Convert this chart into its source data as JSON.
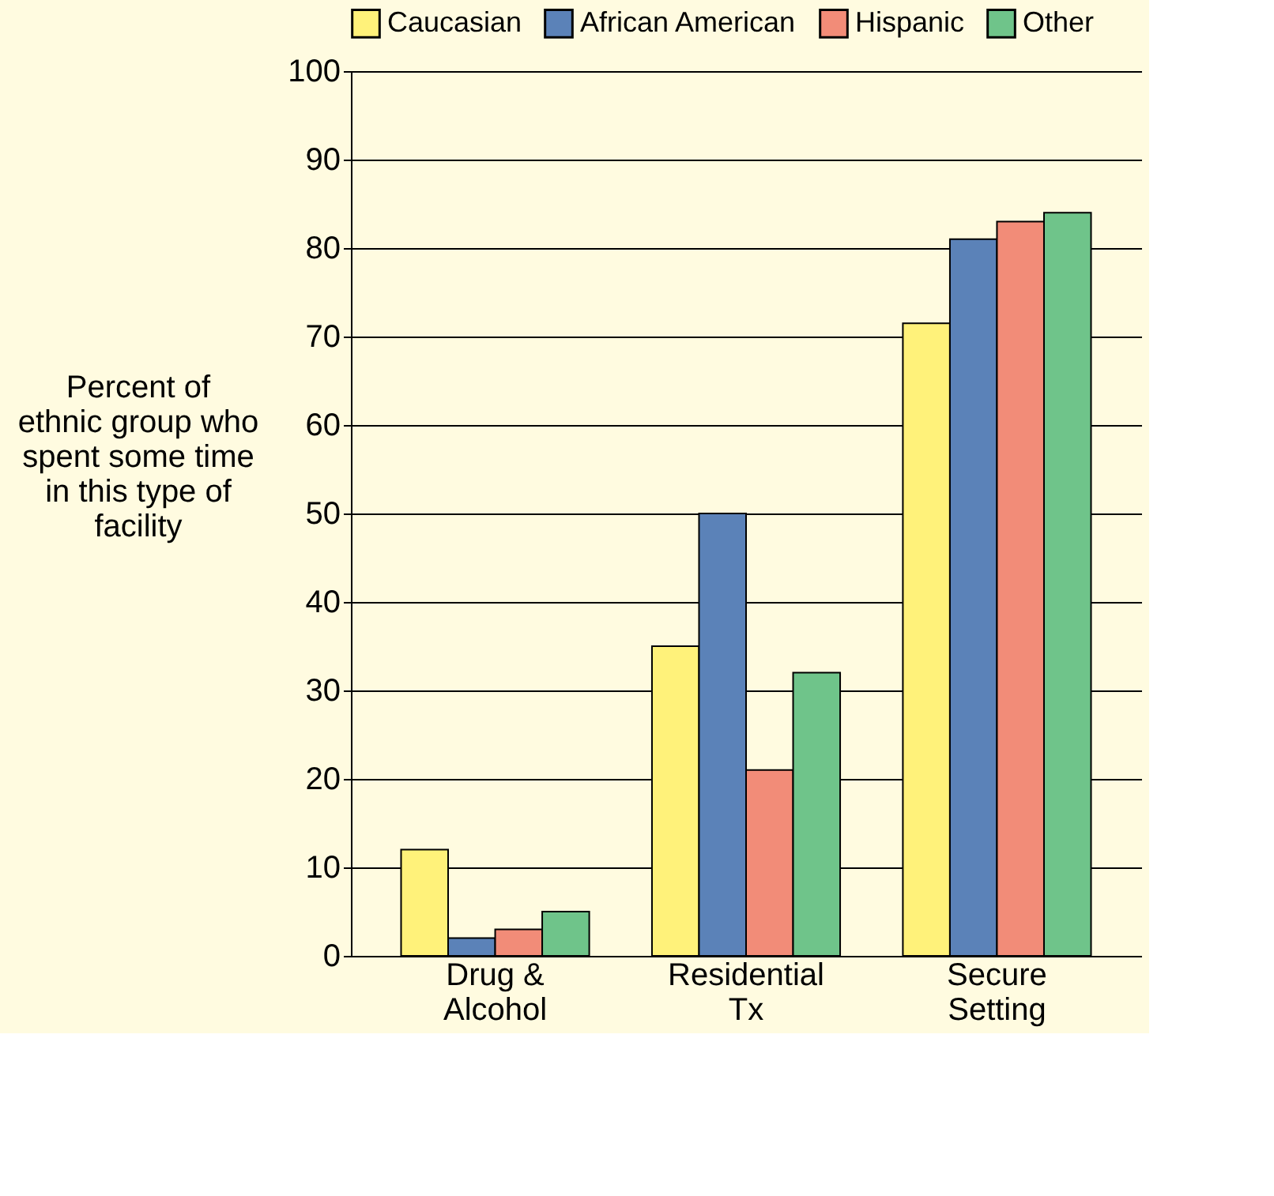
{
  "chart_data": {
    "type": "bar",
    "ylabel": "Percent of ethnic group who spent some time in this type of facility",
    "categories": [
      "Drug & Alcohol",
      "Residential Tx",
      "Secure Setting"
    ],
    "series": [
      {
        "name": "Caucasian",
        "color": "#fff27a",
        "values": [
          12,
          35,
          71.5
        ]
      },
      {
        "name": "African American",
        "color": "#5b82b8",
        "values": [
          2,
          50,
          81
        ]
      },
      {
        "name": "Hispanic",
        "color": "#f28c78",
        "values": [
          3,
          21,
          83
        ]
      },
      {
        "name": "Other",
        "color": "#6fc48a",
        "values": [
          5,
          32,
          84
        ]
      }
    ],
    "ylim": [
      0,
      100
    ],
    "yticks": [
      0,
      10,
      20,
      30,
      40,
      50,
      60,
      70,
      80,
      90,
      100
    ],
    "grid": "y",
    "legend": "top"
  }
}
